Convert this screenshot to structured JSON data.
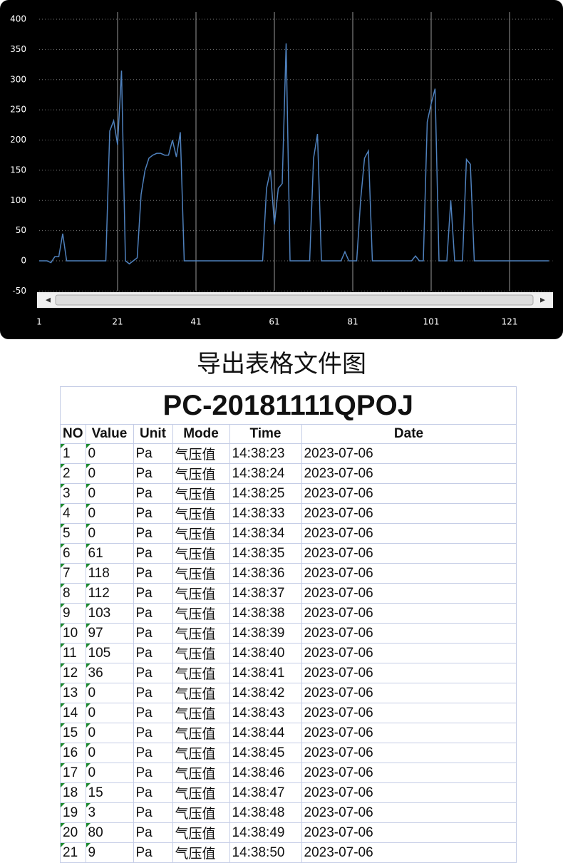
{
  "chart_data": {
    "type": "line",
    "color": "#4f81bd",
    "x": [
      1,
      2,
      3,
      4,
      5,
      6,
      7,
      8,
      9,
      10,
      11,
      12,
      13,
      14,
      15,
      16,
      17,
      18,
      19,
      20,
      21,
      22,
      23,
      24,
      25,
      26,
      27,
      28,
      29,
      30,
      31,
      32,
      33,
      34,
      35,
      36,
      37,
      38,
      39,
      40,
      41,
      42,
      43,
      44,
      45,
      46,
      47,
      48,
      49,
      50,
      51,
      52,
      53,
      54,
      55,
      56,
      57,
      58,
      59,
      60,
      61,
      62,
      63,
      64,
      65,
      66,
      67,
      68,
      69,
      70,
      71,
      72,
      73,
      74,
      75,
      76,
      77,
      78,
      79,
      80,
      81,
      82,
      83,
      84,
      85,
      86,
      87,
      88,
      89,
      90,
      91,
      92,
      93,
      94,
      95,
      96,
      97,
      98,
      99,
      100,
      101,
      102,
      103,
      104,
      105,
      106,
      107,
      108,
      109,
      110,
      111,
      112,
      113,
      114,
      115,
      116,
      117,
      118,
      119,
      120,
      121,
      122,
      123,
      124,
      125,
      126,
      127,
      128,
      129,
      130,
      131
    ],
    "values": [
      0,
      0,
      0,
      -3,
      7,
      7,
      45,
      0,
      0,
      0,
      0,
      0,
      0,
      0,
      0,
      0,
      0,
      0,
      215,
      232,
      192,
      315,
      0,
      -5,
      0,
      5,
      110,
      150,
      170,
      175,
      178,
      178,
      175,
      175,
      200,
      172,
      213,
      0,
      0,
      0,
      0,
      0,
      0,
      0,
      0,
      0,
      0,
      0,
      0,
      0,
      0,
      0,
      0,
      0,
      0,
      0,
      0,
      0,
      120,
      150,
      60,
      120,
      128,
      360,
      0,
      0,
      0,
      0,
      0,
      0,
      170,
      210,
      0,
      0,
      0,
      0,
      0,
      0,
      15,
      0,
      0,
      0,
      100,
      170,
      182,
      0,
      0,
      0,
      0,
      0,
      0,
      0,
      0,
      0,
      0,
      0,
      8,
      0,
      0,
      230,
      260,
      285,
      0,
      0,
      0,
      100,
      0,
      0,
      0,
      168,
      160,
      0,
      0,
      0,
      0,
      0,
      0,
      0,
      0,
      0,
      0,
      0,
      0,
      0,
      0,
      0,
      0,
      0,
      0,
      0,
      0
    ],
    "xlim": [
      1,
      132
    ],
    "xticks": [
      1,
      21,
      41,
      61,
      81,
      101,
      121
    ],
    "ylim": [
      -50,
      400
    ],
    "yticks": [
      -50,
      0,
      50,
      100,
      150,
      200,
      250,
      300,
      350,
      400
    ],
    "grid": true
  },
  "caption": "导出表格文件图",
  "table": {
    "title": "PC-20181111QPOJ",
    "columns": [
      "NO",
      "Value",
      "Unit",
      "Mode",
      "Time",
      "Date"
    ],
    "rows": [
      [
        "1",
        "0",
        "Pa",
        "气压值",
        "14:38:23",
        "2023-07-06"
      ],
      [
        "2",
        "0",
        "Pa",
        "气压值",
        "14:38:24",
        "2023-07-06"
      ],
      [
        "3",
        "0",
        "Pa",
        "气压值",
        "14:38:25",
        "2023-07-06"
      ],
      [
        "4",
        "0",
        "Pa",
        "气压值",
        "14:38:33",
        "2023-07-06"
      ],
      [
        "5",
        "0",
        "Pa",
        "气压值",
        "14:38:34",
        "2023-07-06"
      ],
      [
        "6",
        "61",
        "Pa",
        "气压值",
        "14:38:35",
        "2023-07-06"
      ],
      [
        "7",
        "118",
        "Pa",
        "气压值",
        "14:38:36",
        "2023-07-06"
      ],
      [
        "8",
        "112",
        "Pa",
        "气压值",
        "14:38:37",
        "2023-07-06"
      ],
      [
        "9",
        "103",
        "Pa",
        "气压值",
        "14:38:38",
        "2023-07-06"
      ],
      [
        "10",
        "97",
        "Pa",
        "气压值",
        "14:38:39",
        "2023-07-06"
      ],
      [
        "11",
        "105",
        "Pa",
        "气压值",
        "14:38:40",
        "2023-07-06"
      ],
      [
        "12",
        "36",
        "Pa",
        "气压值",
        "14:38:41",
        "2023-07-06"
      ],
      [
        "13",
        "0",
        "Pa",
        "气压值",
        "14:38:42",
        "2023-07-06"
      ],
      [
        "14",
        "0",
        "Pa",
        "气压值",
        "14:38:43",
        "2023-07-06"
      ],
      [
        "15",
        "0",
        "Pa",
        "气压值",
        "14:38:44",
        "2023-07-06"
      ],
      [
        "16",
        "0",
        "Pa",
        "气压值",
        "14:38:45",
        "2023-07-06"
      ],
      [
        "17",
        "0",
        "Pa",
        "气压值",
        "14:38:46",
        "2023-07-06"
      ],
      [
        "18",
        "15",
        "Pa",
        "气压值",
        "14:38:47",
        "2023-07-06"
      ],
      [
        "19",
        "3",
        "Pa",
        "气压值",
        "14:38:48",
        "2023-07-06"
      ],
      [
        "20",
        "80",
        "Pa",
        "气压值",
        "14:38:49",
        "2023-07-06"
      ],
      [
        "21",
        "9",
        "Pa",
        "气压值",
        "14:38:50",
        "2023-07-06"
      ]
    ]
  }
}
